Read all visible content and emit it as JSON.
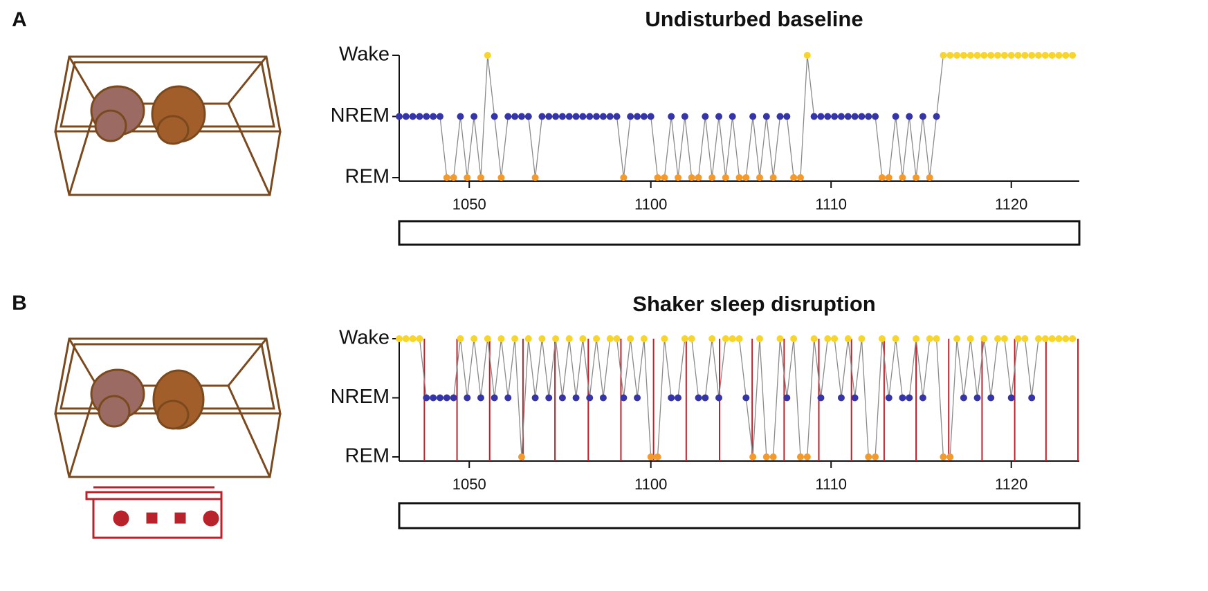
{
  "chart_data": [
    {
      "type": "line",
      "panel_label": "A",
      "title": "Undisturbed baseline",
      "x": [
        0,
        1,
        2,
        3,
        4,
        5,
        6,
        7,
        8,
        9,
        10,
        11,
        12,
        13,
        14,
        15,
        16,
        17,
        18,
        19,
        20,
        21,
        22,
        23,
        24,
        25,
        26,
        27,
        28,
        29,
        30,
        31,
        32,
        33,
        34,
        35,
        36,
        37,
        38,
        39,
        40,
        41,
        42,
        43,
        44,
        45,
        46,
        47,
        48,
        49,
        50,
        51,
        52,
        53,
        54,
        55,
        56,
        57,
        58,
        59,
        60,
        61,
        62,
        63,
        64,
        65,
        66,
        67,
        68,
        69,
        70,
        71,
        72,
        73,
        74,
        75,
        76,
        77,
        78,
        79,
        80,
        81,
        82,
        83,
        84,
        85,
        86,
        87,
        88,
        89,
        90,
        91,
        92,
        93,
        94,
        95,
        96,
        97,
        98,
        99
      ],
      "values": [
        1,
        1,
        1,
        1,
        1,
        1,
        1,
        0,
        0,
        1,
        0,
        1,
        0,
        2,
        1,
        0,
        1,
        1,
        1,
        1,
        0,
        1,
        1,
        1,
        1,
        1,
        1,
        1,
        1,
        1,
        1,
        1,
        1,
        0,
        1,
        1,
        1,
        1,
        0,
        0,
        1,
        0,
        1,
        0,
        0,
        1,
        0,
        1,
        0,
        1,
        0,
        0,
        1,
        0,
        1,
        0,
        1,
        1,
        0,
        0,
        2,
        1,
        1,
        1,
        1,
        1,
        1,
        1,
        1,
        1,
        1,
        0,
        0,
        1,
        0,
        1,
        0,
        1,
        0,
        1,
        2,
        2,
        2,
        2,
        2,
        2,
        2,
        2,
        2,
        2,
        2,
        2,
        2,
        2,
        2,
        2,
        2,
        2,
        2,
        2
      ],
      "state_colors": [
        "#f39a2b",
        "#3535a8",
        "#f7d52c"
      ],
      "line_color": "#8a8a8a",
      "xlim": [
        0,
        100
      ],
      "xticks": [
        {
          "value": 10.3,
          "label": "1050"
        },
        {
          "value": 37,
          "label": "1100"
        },
        {
          "value": 63.5,
          "label": "1110"
        },
        {
          "value": 90,
          "label": "1120"
        }
      ],
      "ylim": [
        0,
        2
      ],
      "yticks": [
        {
          "value": 0,
          "label": "REM"
        },
        {
          "value": 1,
          "label": "NREM"
        },
        {
          "value": 2,
          "label": "Wake"
        }
      ]
    },
    {
      "type": "line",
      "panel_label": "B",
      "title": "Shaker sleep disruption",
      "x": [
        0,
        1,
        2,
        3,
        4,
        5,
        6,
        7,
        8,
        9,
        10,
        11,
        12,
        13,
        14,
        15,
        16,
        17,
        18,
        19,
        20,
        21,
        22,
        23,
        24,
        25,
        26,
        27,
        28,
        29,
        30,
        31,
        32,
        33,
        34,
        35,
        36,
        37,
        38,
        39,
        40,
        41,
        42,
        43,
        44,
        45,
        46,
        47,
        48,
        49,
        50,
        51,
        52,
        53,
        54,
        55,
        56,
        57,
        58,
        59,
        60,
        61,
        62,
        63,
        64,
        65,
        66,
        67,
        68,
        69,
        70,
        71,
        72,
        73,
        74,
        75,
        76,
        77,
        78,
        79,
        80,
        81,
        82,
        83,
        84,
        85,
        86,
        87,
        88,
        89,
        90,
        91,
        92,
        93,
        94,
        95,
        96,
        97,
        98,
        99
      ],
      "values": [
        2,
        2,
        2,
        2,
        1,
        1,
        1,
        1,
        1,
        2,
        1,
        2,
        1,
        2,
        1,
        2,
        1,
        2,
        0,
        2,
        1,
        2,
        1,
        2,
        1,
        2,
        1,
        2,
        1,
        2,
        1,
        2,
        2,
        1,
        2,
        1,
        2,
        0,
        0,
        2,
        1,
        1,
        2,
        2,
        1,
        1,
        2,
        1,
        2,
        2,
        2,
        1,
        0,
        2,
        0,
        0,
        2,
        1,
        2,
        0,
        0,
        2,
        1,
        2,
        2,
        1,
        2,
        1,
        2,
        0,
        0,
        2,
        1,
        2,
        1,
        1,
        2,
        1,
        2,
        2,
        0,
        0,
        2,
        1,
        2,
        1,
        2,
        1,
        2,
        2,
        1,
        2,
        2,
        1,
        2,
        2,
        2,
        2,
        2,
        2
      ],
      "state_colors": [
        "#f39a2b",
        "#3535a8",
        "#f7d52c"
      ],
      "line_color": "#8a8a8a",
      "shaker_events": [
        3.7,
        8.5,
        13.3,
        18.2,
        22.9,
        27.8,
        32.6,
        37.4,
        42.2,
        47.1,
        51.9,
        56.6,
        61.7,
        66.5,
        71.3,
        76.0,
        80.8,
        85.7,
        90.5,
        95.1,
        99.8
      ],
      "event_color": "#c0202a",
      "xlim": [
        0,
        100
      ],
      "xticks": [
        {
          "value": 10.3,
          "label": "1050"
        },
        {
          "value": 37,
          "label": "1100"
        },
        {
          "value": 63.5,
          "label": "1110"
        },
        {
          "value": 90,
          "label": "1120"
        }
      ],
      "ylim": [
        0,
        2
      ],
      "yticks": [
        {
          "value": 0,
          "label": "REM"
        },
        {
          "value": 1,
          "label": "NREM"
        },
        {
          "value": 2,
          "label": "Wake"
        }
      ]
    }
  ]
}
